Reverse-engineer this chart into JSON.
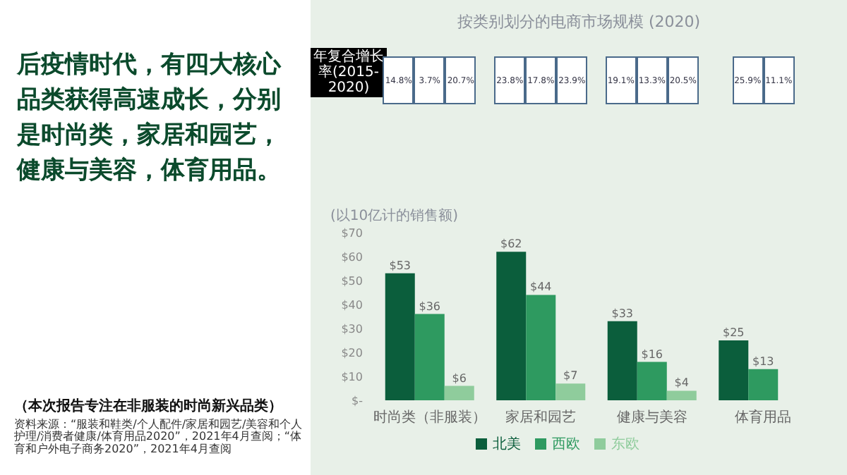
{
  "chart_data": {
    "type": "bar",
    "title": "按类别划分的电商市场规模 (2020)",
    "ylabel": "(以10亿计的销售额)",
    "categories": [
      "时尚类（非服装）",
      "家居和园艺",
      "健康与美容",
      "体育用品"
    ],
    "series": [
      {
        "name": "北美",
        "color": "#0b5e3c",
        "values": [
          53,
          62,
          33,
          25
        ],
        "value_labels": [
          "$53",
          "$62",
          "$33",
          "$25"
        ]
      },
      {
        "name": "西欧",
        "color": "#2e9a60",
        "values": [
          36,
          44,
          16,
          13
        ],
        "value_labels": [
          "$36",
          "$44",
          "$16",
          "$13"
        ]
      },
      {
        "name": "东欧",
        "color": "#8fcc9c",
        "values": [
          6,
          7,
          4,
          null
        ],
        "value_labels": [
          "$6",
          "$7",
          "$4",
          null
        ]
      }
    ],
    "ylim": [
      0,
      70
    ],
    "yticks": [
      {
        "value": 0,
        "label": "$-"
      },
      {
        "value": 10,
        "label": "$10"
      },
      {
        "value": 20,
        "label": "$20"
      },
      {
        "value": 30,
        "label": "$30"
      },
      {
        "value": 40,
        "label": "$40"
      },
      {
        "value": 50,
        "label": "$50"
      },
      {
        "value": 60,
        "label": "$60"
      },
      {
        "value": 70,
        "label": "$70"
      }
    ],
    "grid": false,
    "legend": "bottom",
    "annotations": [
      "后疫情时代，有四大核心品类获得高速成长，分别是时尚类，家居和园艺，健康与美容，体育用品。",
      "（本次报告专注在非服装的时尚新兴品类）",
      "资料来源：“服装和鞋类/个人配件/家居和园艺/美容和个人护理/消费者健康/体育用品2020”，2021年4月查阅；“体育和户外电子商务2020”，2021年4月查阅",
      "年复合增长率(2015-2020)",
      "14.8%",
      "3.7%",
      "20.7%",
      "23.8%",
      "17.8%",
      "23.9%",
      "19.1%",
      "13.3%",
      "20.5%",
      "25.9%",
      "11.1%"
    ]
  }
}
